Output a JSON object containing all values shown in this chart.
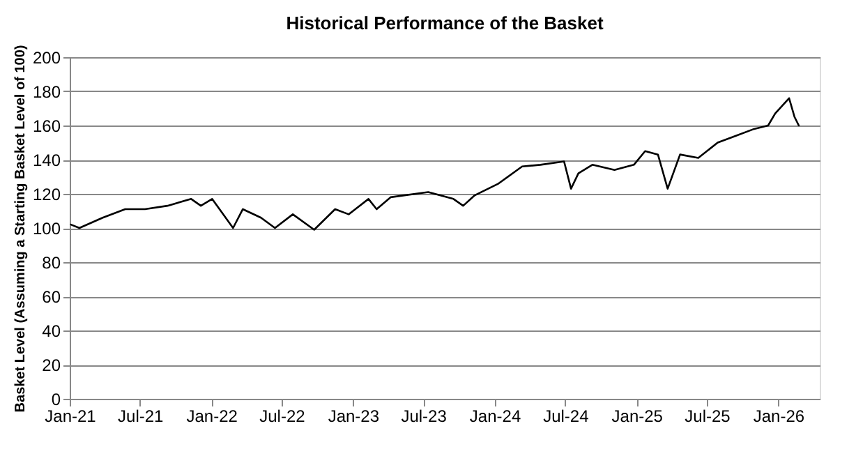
{
  "chart_data": {
    "type": "line",
    "title": "Historical Performance of the Basket",
    "ylabel": "Basket Level (Assuming a Starting Basket Level of 100)",
    "x": [
      "2021-01-04",
      "2021-01-26",
      "2021-03-27",
      "2021-05-24",
      "2021-07-14",
      "2021-09-10",
      "2021-11-10",
      "2021-12-05",
      "2022-01-03",
      "2022-02-26",
      "2022-03-23",
      "2022-05-09",
      "2022-06-14",
      "2022-07-30",
      "2022-09-23",
      "2022-11-16",
      "2022-12-21",
      "2023-02-10",
      "2023-03-03",
      "2023-04-08",
      "2023-07-14",
      "2023-09-17",
      "2023-10-12",
      "2023-11-10",
      "2024-01-11",
      "2024-03-12",
      "2024-04-28",
      "2024-06-28",
      "2024-07-16",
      "2024-08-04",
      "2024-09-09",
      "2024-11-05",
      "2024-12-25",
      "2025-01-23",
      "2025-02-25",
      "2025-03-22",
      "2025-04-23",
      "2025-06-09",
      "2025-07-29",
      "2025-09-14",
      "2025-10-31",
      "2025-12-06",
      "2025-12-24",
      "2026-01-29",
      "2026-02-12",
      "2026-02-23"
    ],
    "series": [
      {
        "color": "#000000",
        "values": [
          102,
          100,
          106,
          111,
          111,
          113,
          117,
          113,
          117,
          100,
          111,
          106,
          100,
          108,
          99,
          111,
          108,
          117,
          111,
          118,
          121,
          117,
          113,
          119,
          126,
          136,
          137,
          139,
          123,
          132,
          137,
          134,
          137,
          145,
          143,
          123,
          143,
          141,
          150,
          154,
          158,
          160,
          167,
          176,
          165,
          160
        ]
      }
    ],
    "xlim": [
      "2021-01-01",
      "2026-04-18"
    ],
    "xticks": [
      {
        "value": "2021-01-01",
        "label": "Jan-21"
      },
      {
        "value": "2021-07-01",
        "label": "Jul-21"
      },
      {
        "value": "2022-01-01",
        "label": "Jan-22"
      },
      {
        "value": "2022-07-01",
        "label": "Jul-22"
      },
      {
        "value": "2023-01-01",
        "label": "Jan-23"
      },
      {
        "value": "2023-07-01",
        "label": "Jul-23"
      },
      {
        "value": "2024-01-01",
        "label": "Jan-24"
      },
      {
        "value": "2024-07-01",
        "label": "Jul-24"
      },
      {
        "value": "2025-01-01",
        "label": "Jan-25"
      },
      {
        "value": "2025-07-01",
        "label": "Jul-25"
      },
      {
        "value": "2026-01-01",
        "label": "Jan-26"
      }
    ],
    "ylim": [
      0,
      200
    ],
    "yticks": [
      0,
      20,
      40,
      60,
      80,
      100,
      120,
      140,
      160,
      180,
      200
    ],
    "grid": "y",
    "legend": false,
    "marker": "none",
    "line_style": "solid"
  }
}
